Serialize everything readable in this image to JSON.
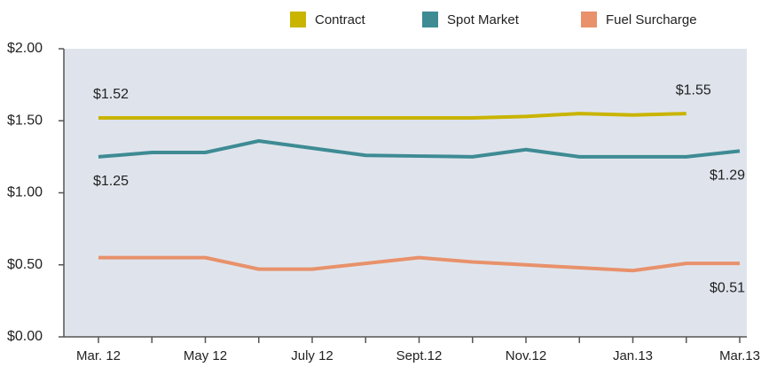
{
  "chart_data": {
    "type": "line",
    "categories": [
      "Mar. 12",
      null,
      "May 12",
      null,
      "July 12",
      null,
      "Sept.12",
      null,
      "Nov.12",
      null,
      "Jan.13",
      null,
      "Mar.13"
    ],
    "ylim": [
      0,
      2
    ],
    "yticks": [
      {
        "value": 0,
        "label": "$0.00"
      },
      {
        "value": 0.5,
        "label": "$0.50"
      },
      {
        "value": 1,
        "label": "$1.00"
      },
      {
        "value": 1.5,
        "label": "$1.50"
      },
      {
        "value": 2,
        "label": "$2.00"
      }
    ],
    "legend": "top",
    "series": [
      {
        "name": "Contract",
        "color": "#c9b400",
        "values": [
          1.52,
          1.52,
          1.52,
          1.52,
          1.52,
          1.52,
          1.52,
          1.52,
          1.53,
          1.55,
          1.54,
          1.55,
          null
        ],
        "value_labels": [
          "$1.52",
          null,
          null,
          null,
          null,
          null,
          null,
          null,
          null,
          null,
          null,
          "$1.55",
          null
        ]
      },
      {
        "name": "Spot Market",
        "color": "#3e8b94",
        "values": [
          1.25,
          1.28,
          1.28,
          1.36,
          1.31,
          1.26,
          1.255,
          1.25,
          1.3,
          1.25,
          1.25,
          1.25,
          1.29
        ],
        "value_labels": [
          "$1.25",
          null,
          null,
          null,
          null,
          null,
          null,
          null,
          null,
          null,
          null,
          null,
          "$1.29"
        ]
      },
      {
        "name": "Fuel Surcharge",
        "color": "#e8916b",
        "values": [
          0.55,
          0.55,
          0.55,
          0.47,
          0.47,
          0.51,
          0.55,
          0.52,
          0.5,
          0.48,
          0.46,
          0.51,
          0.51
        ],
        "value_labels": [
          null,
          null,
          null,
          null,
          null,
          null,
          null,
          null,
          null,
          null,
          null,
          null,
          "$0.51"
        ]
      }
    ]
  }
}
